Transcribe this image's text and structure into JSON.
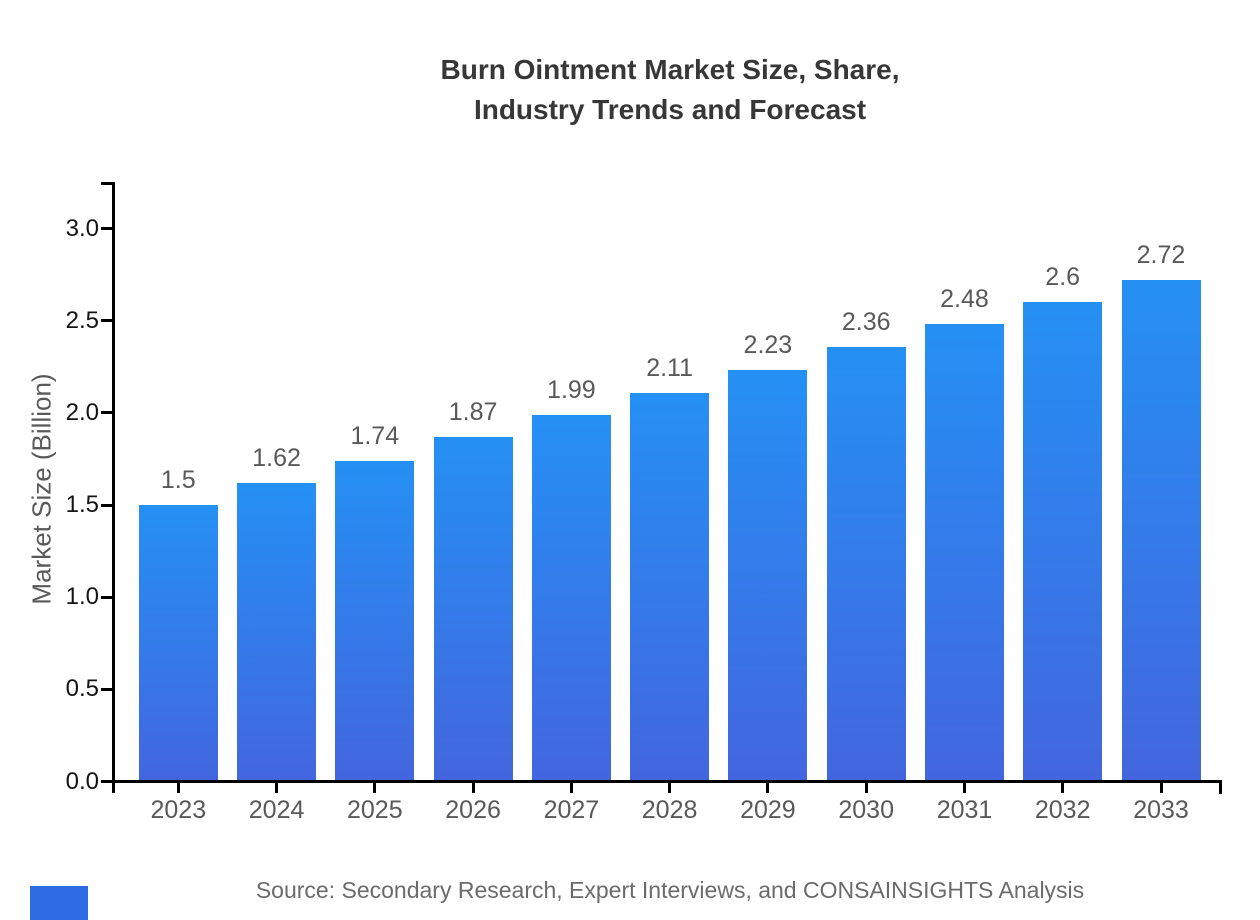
{
  "title": {
    "line1": "Burn Ointment Market Size, Share,",
    "line2": "Industry Trends and Forecast"
  },
  "source_note": "Source: Secondary Research, Expert Interviews, and CONSAINSIGHTS Analysis",
  "logo_block_color": "#2f6be2",
  "chart_data": {
    "type": "bar",
    "title": "Burn Ointment Market Size, Share, Industry Trends and Forecast",
    "categories": [
      "2023",
      "2024",
      "2025",
      "2026",
      "2027",
      "2028",
      "2029",
      "2030",
      "2031",
      "2032",
      "2033"
    ],
    "values": [
      1.5,
      1.62,
      1.74,
      1.87,
      1.99,
      2.11,
      2.23,
      2.36,
      2.48,
      2.6,
      2.72
    ],
    "bar_labels": [
      "1.5",
      "1.62",
      "1.74",
      "1.87",
      "1.99",
      "2.11",
      "2.23",
      "2.36",
      "2.48",
      "2.6",
      "2.72"
    ],
    "xlabel": "",
    "ylabel": "Market Size (Billion)",
    "ylim": [
      0,
      3.25
    ],
    "yticks": [
      0.0,
      0.5,
      1.0,
      1.5,
      2.0,
      2.5,
      3.0
    ],
    "ytick_labels": [
      "0.0",
      "0.5",
      "1.0",
      "1.5",
      "2.0",
      "2.5",
      "3.0"
    ],
    "grid": false,
    "legend": null,
    "bar_gradient_top": "#2590f4",
    "bar_gradient_bottom": "#4366e0",
    "value_label_color": "#595959",
    "x_tick_label_color": "#595959",
    "y_tick_label_color": "#141414",
    "axis_color": "#000000"
  }
}
